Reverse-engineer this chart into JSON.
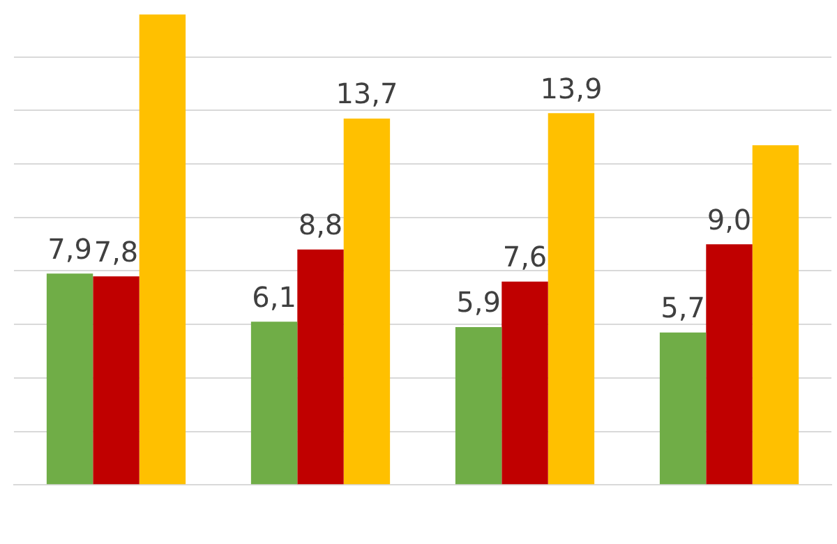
{
  "chart_data": {
    "type": "bar",
    "categories": [
      null,
      null,
      null,
      null
    ],
    "series": [
      {
        "color": "#70ad47",
        "values": [
          7.9,
          6.1,
          5.9,
          5.7
        ],
        "value_labels": [
          "7,9",
          "6,1",
          "5,9",
          "5,7"
        ]
      },
      {
        "color": "#c00000",
        "values": [
          7.8,
          8.8,
          7.6,
          9.0
        ],
        "value_labels": [
          "7,8",
          "8,8",
          "7,6",
          "9,0"
        ]
      },
      {
        "color": "#ffc000",
        "values": [
          17.6,
          13.7,
          13.9,
          12.7
        ],
        "value_labels": [
          null,
          "13,7",
          "13,9",
          null
        ]
      }
    ],
    "ylim": [
      0,
      17.6
    ],
    "yticks": [
      {
        "value": 0,
        "label": null
      },
      {
        "value": 2,
        "label": null
      },
      {
        "value": 4,
        "label": null
      },
      {
        "value": 6,
        "label": null
      },
      {
        "value": 8,
        "label": null
      },
      {
        "value": 10,
        "label": null
      },
      {
        "value": 12,
        "label": null
      },
      {
        "value": 14,
        "label": null
      },
      {
        "value": 16,
        "label": null
      }
    ],
    "grid": "y",
    "legend": false
  }
}
